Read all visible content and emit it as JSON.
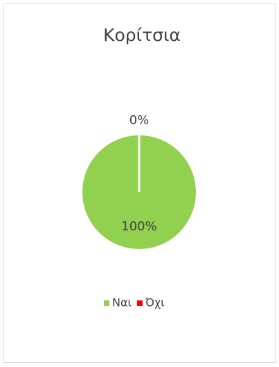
{
  "chart_data": {
    "type": "pie",
    "title": "Κορίτσια",
    "categories": [
      "Ναι",
      "Όχι"
    ],
    "values": [
      100,
      0
    ],
    "value_labels": [
      "100%",
      "0%"
    ],
    "colors": [
      "#92d050",
      "#ff0000"
    ],
    "legend": "bottom"
  }
}
